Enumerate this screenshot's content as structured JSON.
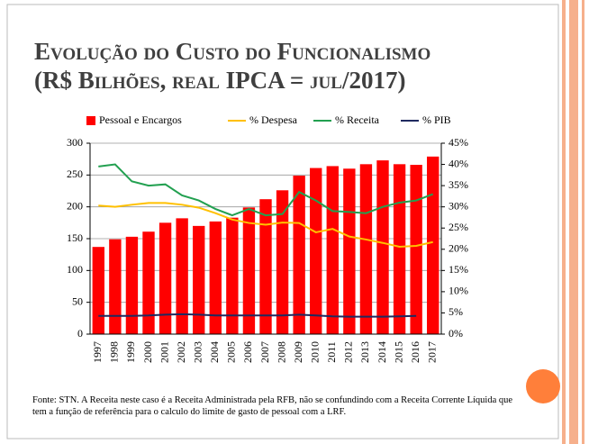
{
  "chart_data": {
    "type": "bar_line",
    "title": "Evolução do Custo do Funcionalismo",
    "subtitle": "(R$ Bilhões, real IPCA = jul/2017)",
    "categories": [
      "1997",
      "1998",
      "1999",
      "2000",
      "2001",
      "2002",
      "2003",
      "2004",
      "2005",
      "2006",
      "2007",
      "2008",
      "2009",
      "2010",
      "2011",
      "2012",
      "2013",
      "2014",
      "2015",
      "2016",
      "2017"
    ],
    "series": [
      {
        "name": "Pessoal e Encargos",
        "color": "#ff0000",
        "axis": "y",
        "values": [
          137,
          149,
          153,
          161,
          175,
          182,
          170,
          177,
          183,
          199,
          212,
          226,
          249,
          261,
          264,
          260,
          267,
          273,
          267,
          266,
          279
        ]
      },
      {
        "name": "% Despesa",
        "color": "#ffc000",
        "axis": "y2",
        "values": [
          30.3,
          30.0,
          30.5,
          30.9,
          30.9,
          30.5,
          29.8,
          28.5,
          27.0,
          26.2,
          25.8,
          26.3,
          26.2,
          24.0,
          24.8,
          23.0,
          22.3,
          21.5,
          20.6,
          20.8,
          21.7
        ]
      },
      {
        "name": "% Receita",
        "color": "#22a050",
        "axis": "y2",
        "values": [
          39.5,
          40.0,
          36.0,
          35.0,
          35.3,
          32.7,
          31.5,
          29.5,
          28.0,
          29.5,
          28.0,
          28.3,
          33.5,
          31.5,
          29.0,
          28.8,
          28.5,
          30.0,
          31.0,
          31.5,
          33.0
        ]
      },
      {
        "name": "% PIB",
        "color": "#1f2a60",
        "axis": "y2",
        "values": [
          4.3,
          4.3,
          4.3,
          4.4,
          4.6,
          4.7,
          4.6,
          4.4,
          4.4,
          4.4,
          4.4,
          4.4,
          4.6,
          4.4,
          4.2,
          4.1,
          4.1,
          4.1,
          4.2,
          4.3,
          null
        ]
      }
    ],
    "ylim": [
      0,
      300
    ],
    "yticks": [
      0,
      50,
      100,
      150,
      200,
      250,
      300
    ],
    "y2lim": [
      0,
      45
    ],
    "y2ticks": [
      {
        "value": 0,
        "label": "0%"
      },
      {
        "value": 5,
        "label": "5%"
      },
      {
        "value": 10,
        "label": "10%"
      },
      {
        "value": 15,
        "label": "15%"
      },
      {
        "value": 20,
        "label": "20%"
      },
      {
        "value": 25,
        "label": "25%"
      },
      {
        "value": 30,
        "label": "30%"
      },
      {
        "value": 35,
        "label": "35%"
      },
      {
        "value": 40,
        "label": "40%"
      },
      {
        "value": 45,
        "label": "45%"
      }
    ],
    "grid": true,
    "legend": "top",
    "note": "Fonte: STN. A Receita neste caso é a Receita Administrada pela RFB, não se confundindo com a Receita Corrente Líquida que tem a função de referência para o calculo do limite de gasto de pessoal com a LRF."
  }
}
